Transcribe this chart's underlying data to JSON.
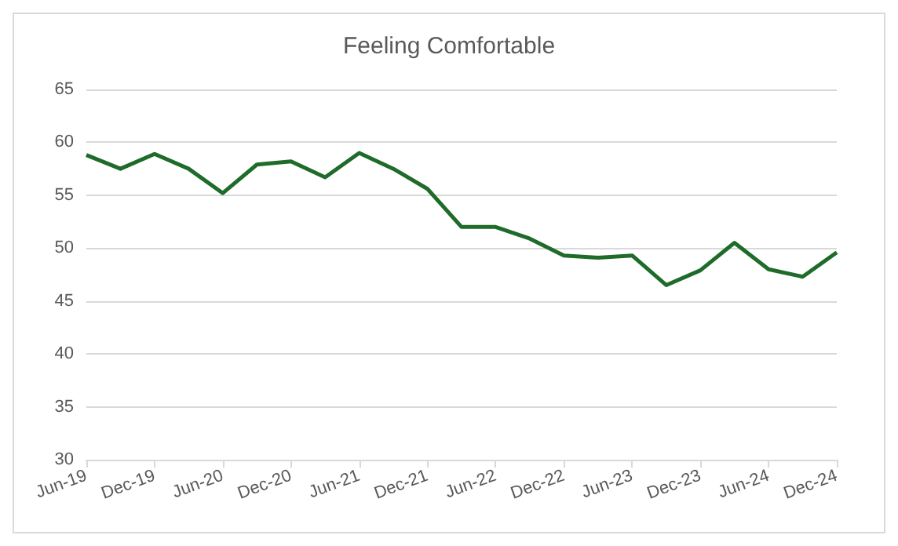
{
  "chart_data": {
    "type": "line",
    "title": "Feeling Comfortable",
    "categories": [
      "Jun-19",
      null,
      "Dec-19",
      null,
      "Jun-20",
      null,
      "Dec-20",
      null,
      "Jun-21",
      null,
      "Dec-21",
      null,
      "Jun-22",
      null,
      "Dec-22",
      null,
      "Jun-23",
      null,
      "Dec-23",
      null,
      "Jun-24",
      null,
      "Dec-24"
    ],
    "series": [
      {
        "color": "#1e6b2a",
        "values": [
          58.8,
          57.5,
          58.9,
          57.5,
          55.2,
          57.9,
          58.2,
          56.7,
          59.0,
          57.5,
          55.6,
          52.0,
          52.0,
          50.9,
          49.3,
          49.1,
          49.3,
          46.5,
          47.9,
          50.5,
          48.0,
          47.3,
          49.6
        ]
      }
    ],
    "ylim": [
      30,
      65
    ],
    "yticks": [
      30,
      35,
      40,
      45,
      50,
      55,
      60,
      65
    ],
    "grid": "y",
    "marker": "none",
    "line_style": "solid"
  }
}
